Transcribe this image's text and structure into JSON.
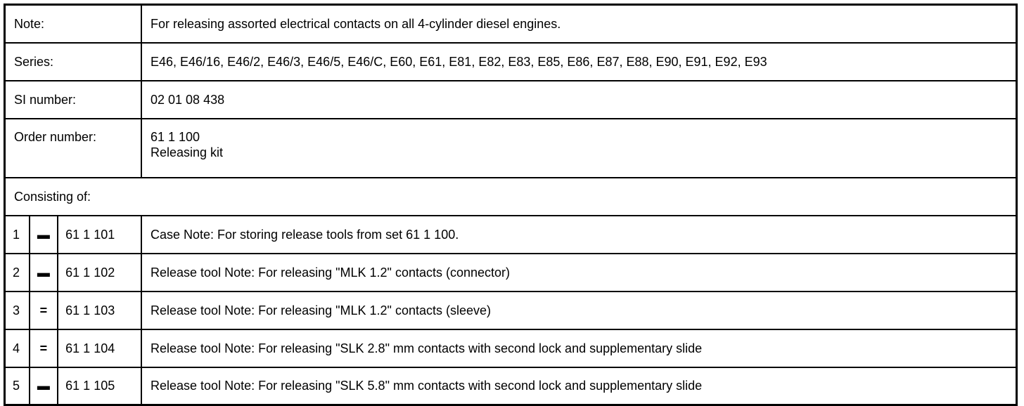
{
  "info": [
    {
      "label": "Note:",
      "value": "For releasing assorted electrical contacts on all 4-cylinder diesel engines."
    },
    {
      "label": "Series:",
      "value": "E46, E46/16, E46/2, E46/3, E46/5, E46/C, E60, E61, E81, E82, E83, E85, E86, E87, E88, E90, E91, E92, E93"
    },
    {
      "label": "SI number:",
      "value": "02 01 08 438"
    }
  ],
  "order": {
    "label": "Order number:",
    "number": "61 1 100",
    "name": "Releasing kit"
  },
  "consisting_label": "Consisting of:",
  "parts": [
    {
      "num": "1",
      "mark": "▬",
      "part": "61 1 101",
      "desc": "Case Note: For storing release tools from set 61 1 100."
    },
    {
      "num": "2",
      "mark": "▬",
      "part": "61 1 102",
      "desc": "Release tool Note: For releasing \"MLK 1.2\" contacts (connector)"
    },
    {
      "num": "3",
      "mark": "=",
      "part": "61 1 103",
      "desc": "Release tool Note: For releasing \"MLK 1.2\" contacts (sleeve)"
    },
    {
      "num": "4",
      "mark": "=",
      "part": "61 1 104",
      "desc": "Release tool Note: For releasing \"SLK 2.8\" mm contacts with second lock and supplementary slide"
    },
    {
      "num": "5",
      "mark": "▬",
      "part": "61 1 105",
      "desc": "Release tool Note: For releasing \"SLK 5.8\" mm contacts with second lock and supplementary slide"
    }
  ]
}
